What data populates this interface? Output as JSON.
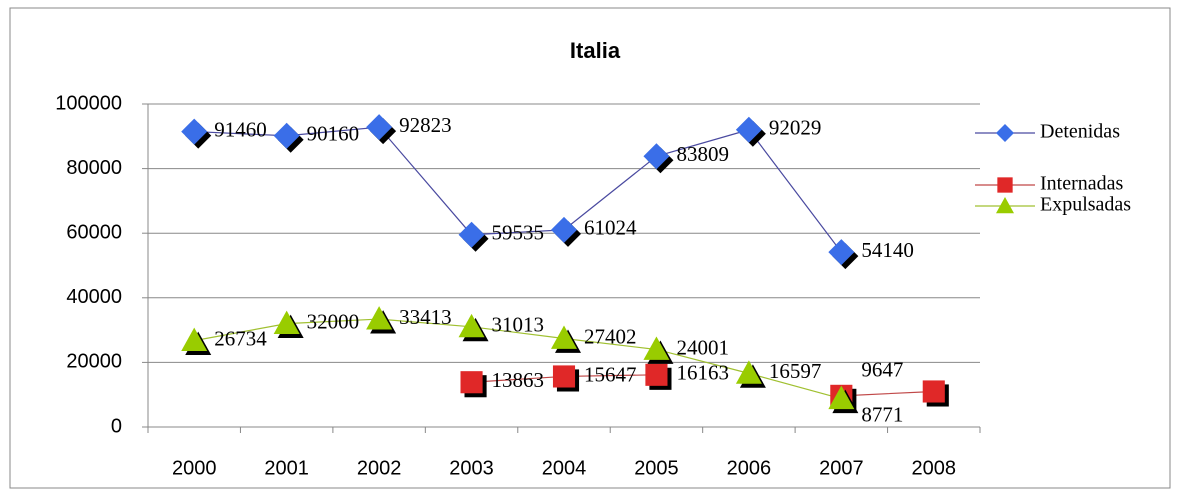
{
  "chart_data": {
    "type": "line",
    "title": "Italia",
    "categories": [
      "2000",
      "2001",
      "2002",
      "2003",
      "2004",
      "2005",
      "2006",
      "2007",
      "2008"
    ],
    "series": [
      {
        "name": "Detenidas",
        "color": "#3a6ee8",
        "line_color": "#4a4aa0",
        "marker": "diamond",
        "values": [
          91460,
          90160,
          92823,
          59535,
          61024,
          83809,
          92029,
          54140,
          null
        ]
      },
      {
        "name": "Internadas",
        "color": "#e02828",
        "line_color": "#c04848",
        "marker": "square",
        "values": [
          null,
          null,
          null,
          13863,
          15647,
          16163,
          null,
          9647,
          11000
        ],
        "value_labels": [
          null,
          null,
          null,
          "13863",
          "15647",
          "16163",
          null,
          "9647",
          null
        ]
      },
      {
        "name": "Expulsadas",
        "color": "#99cc00",
        "line_color": "#a0c030",
        "marker": "triangle",
        "values": [
          26734,
          32000,
          33413,
          31013,
          27402,
          24001,
          16597,
          8771,
          null
        ]
      }
    ],
    "ylim": [
      0,
      100000
    ],
    "yticks": [
      0,
      20000,
      40000,
      60000,
      80000,
      100000
    ],
    "grid": true,
    "legend": "right"
  }
}
